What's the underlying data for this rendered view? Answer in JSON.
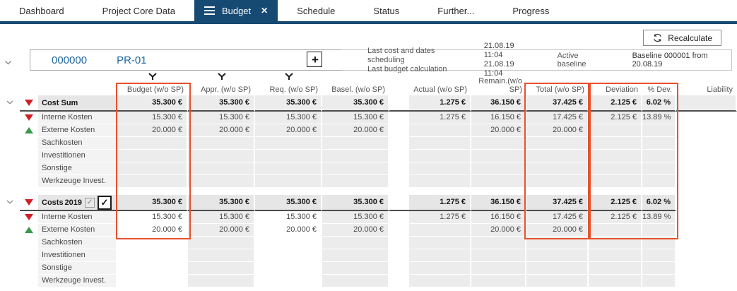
{
  "colors": {
    "tab_active_bg": "#164a73",
    "highlight_orange": "#e8512c",
    "red_triangle": "#cf2027",
    "green_triangle": "#3a9948",
    "project_id_blue": "#2166a0"
  },
  "tabs": [
    {
      "label": "Dashboard",
      "active": false
    },
    {
      "label": "Project Core Data",
      "active": false
    },
    {
      "label": "Budget",
      "active": true
    },
    {
      "label": "Schedule",
      "active": false
    },
    {
      "label": "Status",
      "active": false
    },
    {
      "label": "Further...",
      "active": false
    },
    {
      "label": "Progress",
      "active": false
    }
  ],
  "toolbar": {
    "recalculate_label": "Recalculate"
  },
  "project": {
    "id": "000000",
    "code": "PR-01",
    "add_label": "+",
    "info": [
      {
        "label": "Last cost and dates scheduling",
        "date": "21.08.19",
        "time": "11:04"
      },
      {
        "label": "Last budget calculation",
        "date": "21.08.19",
        "time": "11:04"
      }
    ],
    "active_baseline_label": "Active baseline",
    "active_baseline_value": "Baseline 000001 from 20.08.19"
  },
  "table": {
    "columns": [
      {
        "id": "budget",
        "label": "Budget (w/o SP)",
        "filter": true
      },
      {
        "id": "appr",
        "label": "Appr. (w/o SP)",
        "filter": true
      },
      {
        "id": "req",
        "label": "Req. (w/o SP)",
        "filter": true
      },
      {
        "id": "basel",
        "label": "Basel. (w/o SP)",
        "filter": false
      },
      {
        "id": "actual",
        "label": "Actual (w/o SP)",
        "filter": false
      },
      {
        "id": "remain",
        "label": "Remain.(w/o SP)",
        "filter": false
      },
      {
        "id": "total",
        "label": "Total (w/o SP)",
        "filter": false
      },
      {
        "id": "dev",
        "label": "Deviation",
        "filter": false
      },
      {
        "id": "pdev",
        "label": "% Dev.",
        "filter": false
      },
      {
        "id": "liability",
        "label": "Liability",
        "filter": false
      }
    ],
    "sections": [
      {
        "summary": {
          "label": "Cost Sum",
          "icon": "red-down",
          "expandable": true,
          "values": {
            "budget": "35.300 €",
            "appr": "35.300 €",
            "req": "35.300 €",
            "basel": "35.300 €",
            "actual": "1.275 €",
            "remain": "36.150 €",
            "total": "37.425 €",
            "dev": "2.125 €",
            "pdev": "6.02 %",
            "liability": ""
          }
        },
        "rows": [
          {
            "label": "Interne Kosten",
            "icon": "red-down",
            "values": {
              "budget": "15.300 €",
              "appr": "15.300 €",
              "req": "15.300 €",
              "basel": "15.300 €",
              "actual": "1.275 €",
              "remain": "16.150 €",
              "total": "17.425 €",
              "dev": "2.125 €",
              "pdev": "13.89 %",
              "liability": ""
            }
          },
          {
            "label": "Externe Kosten",
            "icon": "green-up",
            "values": {
              "budget": "20.000 €",
              "appr": "20.000 €",
              "req": "20.000 €",
              "basel": "20.000 €",
              "actual": "",
              "remain": "20.000 €",
              "total": "20.000 €",
              "dev": "",
              "pdev": "",
              "liability": ""
            }
          },
          {
            "label": "Sachkosten",
            "icon": null,
            "values": {}
          },
          {
            "label": "Investitionen",
            "icon": null,
            "values": {}
          },
          {
            "label": "Sonstige",
            "icon": null,
            "values": {}
          },
          {
            "label": "Werkzeuge Invest.",
            "icon": null,
            "values": {}
          }
        ]
      },
      {
        "summary": {
          "label": "Costs",
          "icon": "red-down",
          "expandable": true,
          "year": "2019",
          "checkboxes": [
            {
              "state": "checked-disabled"
            },
            {
              "state": "checked"
            }
          ],
          "values": {
            "budget": "35.300 €",
            "appr": "35.300 €",
            "req": "35.300 €",
            "basel": "35.300 €",
            "actual": "1.275 €",
            "remain": "36.150 €",
            "total": "37.425 €",
            "dev": "2.125 €",
            "pdev": "6.02 %",
            "liability": ""
          }
        },
        "rows": [
          {
            "label": "Interne Kosten",
            "icon": "red-down",
            "values": {
              "budget": "15.300 €",
              "appr": "15.300 €",
              "req": "15.300 €",
              "basel": "15.300 €",
              "actual": "1.275 €",
              "remain": "16.150 €",
              "total": "17.425 €",
              "dev": "2.125 €",
              "pdev": "13.89 %",
              "liability": ""
            }
          },
          {
            "label": "Externe Kosten",
            "icon": "green-up",
            "values": {
              "budget": "20.000 €",
              "appr": "20.000 €",
              "req": "20.000 €",
              "basel": "20.000 €",
              "actual": "",
              "remain": "20.000 €",
              "total": "20.000 €",
              "dev": "",
              "pdev": "",
              "liability": ""
            }
          },
          {
            "label": "Sachkosten",
            "icon": null,
            "values": {}
          },
          {
            "label": "Investitionen",
            "icon": null,
            "values": {}
          },
          {
            "label": "Sonstige",
            "icon": null,
            "values": {}
          },
          {
            "label": "Werkzeuge Invest.",
            "icon": null,
            "values": {}
          }
        ]
      }
    ]
  },
  "check_glyph": "✓"
}
